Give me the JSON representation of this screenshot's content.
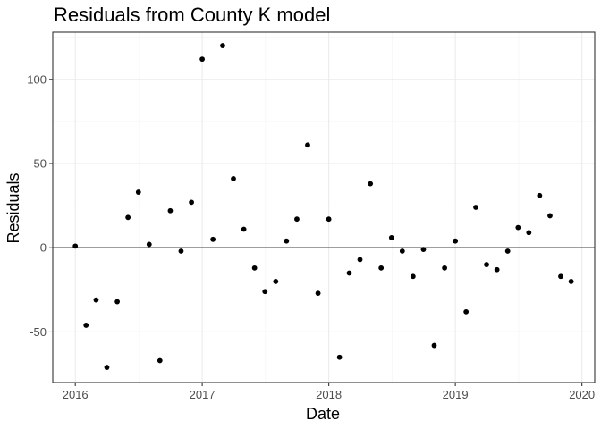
{
  "chart_data": {
    "type": "scatter",
    "title": "Residuals from County K model",
    "xlabel": "Date",
    "ylabel": "Residuals",
    "x_is_date": true,
    "xlim": [
      "2015-10-28",
      "2020-02-07"
    ],
    "ylim": [
      -80,
      128
    ],
    "x_ticks": [
      {
        "value": "2016-01-01",
        "label": "2016"
      },
      {
        "value": "2017-01-01",
        "label": "2017"
      },
      {
        "value": "2018-01-01",
        "label": "2018"
      },
      {
        "value": "2019-01-01",
        "label": "2019"
      },
      {
        "value": "2020-01-01",
        "label": "2020"
      }
    ],
    "y_ticks": [
      {
        "value": -50,
        "label": "-50"
      },
      {
        "value": 0,
        "label": "0"
      },
      {
        "value": 50,
        "label": "50"
      },
      {
        "value": 100,
        "label": "100"
      }
    ],
    "reference_line": {
      "y": 0
    },
    "grid": true,
    "points": [
      {
        "x": "2016-01-01",
        "y": 1
      },
      {
        "x": "2016-02-01",
        "y": -46
      },
      {
        "x": "2016-03-01",
        "y": -31
      },
      {
        "x": "2016-04-01",
        "y": -71
      },
      {
        "x": "2016-05-01",
        "y": -32
      },
      {
        "x": "2016-06-01",
        "y": 18
      },
      {
        "x": "2016-07-01",
        "y": 33
      },
      {
        "x": "2016-08-01",
        "y": 2
      },
      {
        "x": "2016-09-01",
        "y": -67
      },
      {
        "x": "2016-10-01",
        "y": 22
      },
      {
        "x": "2016-11-01",
        "y": -2
      },
      {
        "x": "2016-12-01",
        "y": 27
      },
      {
        "x": "2017-01-01",
        "y": 112
      },
      {
        "x": "2017-02-01",
        "y": 5
      },
      {
        "x": "2017-03-01",
        "y": 120
      },
      {
        "x": "2017-04-01",
        "y": 41
      },
      {
        "x": "2017-05-01",
        "y": 11
      },
      {
        "x": "2017-06-01",
        "y": -12
      },
      {
        "x": "2017-07-01",
        "y": -26
      },
      {
        "x": "2017-08-01",
        "y": -20
      },
      {
        "x": "2017-09-01",
        "y": 4
      },
      {
        "x": "2017-10-01",
        "y": 17
      },
      {
        "x": "2017-11-01",
        "y": 61
      },
      {
        "x": "2017-12-01",
        "y": -27
      },
      {
        "x": "2018-01-01",
        "y": 17
      },
      {
        "x": "2018-02-01",
        "y": -65
      },
      {
        "x": "2018-03-01",
        "y": -15
      },
      {
        "x": "2018-04-01",
        "y": -7
      },
      {
        "x": "2018-05-01",
        "y": 38
      },
      {
        "x": "2018-06-01",
        "y": -12
      },
      {
        "x": "2018-07-01",
        "y": 6
      },
      {
        "x": "2018-08-01",
        "y": -2
      },
      {
        "x": "2018-09-01",
        "y": -17
      },
      {
        "x": "2018-10-01",
        "y": -1
      },
      {
        "x": "2018-11-01",
        "y": -58
      },
      {
        "x": "2018-12-01",
        "y": -12
      },
      {
        "x": "2019-01-01",
        "y": 4
      },
      {
        "x": "2019-02-01",
        "y": -38
      },
      {
        "x": "2019-03-01",
        "y": 24
      },
      {
        "x": "2019-04-01",
        "y": -10
      },
      {
        "x": "2019-05-01",
        "y": -13
      },
      {
        "x": "2019-06-01",
        "y": -2
      },
      {
        "x": "2019-07-01",
        "y": 12
      },
      {
        "x": "2019-08-01",
        "y": 9
      },
      {
        "x": "2019-09-01",
        "y": 31
      },
      {
        "x": "2019-10-01",
        "y": 19
      },
      {
        "x": "2019-11-01",
        "y": -17
      },
      {
        "x": "2019-12-01",
        "y": -20
      }
    ]
  }
}
